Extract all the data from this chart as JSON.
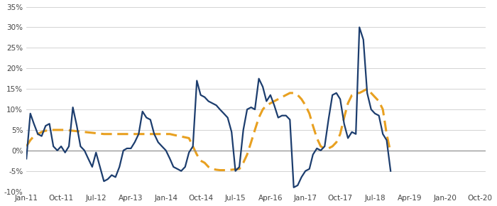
{
  "ylim": [
    -0.1,
    0.35
  ],
  "yticks": [
    -0.1,
    -0.05,
    0.0,
    0.05,
    0.1,
    0.15,
    0.2,
    0.25,
    0.3,
    0.35
  ],
  "ytick_labels": [
    "-10%",
    "-5%",
    "0%",
    "5%",
    "10%",
    "15%",
    "20%",
    "25%",
    "30%",
    "35%"
  ],
  "xtick_labels": [
    "Jan-11",
    "Oct-11",
    "Jul-12",
    "Apr-13",
    "Jan-14",
    "Oct-14",
    "Jul-15",
    "Apr-16",
    "Jan-17",
    "Oct-17",
    "Jul-18",
    "Apr-19",
    "Jan-20",
    "Oct-20"
  ],
  "solid_color": "#1c3d6e",
  "dashed_color": "#e8a020",
  "bg_color": "#ffffff",
  "grid_color": "#cccccc",
  "solid_lw": 1.6,
  "dashed_lw": 2.2,
  "solid_values": [
    -0.02,
    0.09,
    0.065,
    0.04,
    0.035,
    0.06,
    0.065,
    0.01,
    0.0,
    0.01,
    -0.005,
    0.01,
    0.105,
    0.06,
    0.01,
    0.0,
    -0.02,
    -0.04,
    -0.005,
    -0.04,
    -0.075,
    -0.07,
    -0.06,
    -0.065,
    -0.04,
    0.0,
    0.005,
    0.005,
    0.02,
    0.04,
    0.095,
    0.08,
    0.075,
    0.04,
    0.02,
    0.01,
    0.0,
    -0.02,
    -0.04,
    -0.045,
    -0.05,
    -0.04,
    -0.005,
    0.01,
    0.17,
    0.135,
    0.13,
    0.12,
    0.115,
    0.11,
    0.1,
    0.09,
    0.08,
    0.045,
    -0.05,
    -0.04,
    0.05,
    0.1,
    0.105,
    0.1,
    0.175,
    0.155,
    0.12,
    0.135,
    0.11,
    0.08,
    0.085,
    0.085,
    0.075,
    -0.09,
    -0.085,
    -0.065,
    -0.05,
    -0.045,
    -0.01,
    0.005,
    0.0,
    0.01,
    0.075,
    0.135,
    0.14,
    0.125,
    0.065,
    0.03,
    0.045,
    0.04,
    0.3,
    0.27,
    0.14,
    0.1,
    0.09,
    0.085,
    0.04,
    0.025,
    -0.05
  ],
  "dashed_values": [
    0.01,
    0.025,
    0.035,
    0.04,
    0.045,
    0.048,
    0.049,
    0.05,
    0.05,
    0.05,
    0.05,
    0.049,
    0.048,
    0.047,
    0.046,
    0.045,
    0.044,
    0.043,
    0.042,
    0.041,
    0.04,
    0.04,
    0.04,
    0.04,
    0.04,
    0.04,
    0.04,
    0.04,
    0.04,
    0.04,
    0.04,
    0.04,
    0.04,
    0.04,
    0.04,
    0.04,
    0.04,
    0.04,
    0.038,
    0.036,
    0.034,
    0.032,
    0.03,
    0.01,
    -0.01,
    -0.025,
    -0.03,
    -0.04,
    -0.045,
    -0.047,
    -0.048,
    -0.048,
    -0.048,
    -0.047,
    -0.046,
    -0.045,
    -0.03,
    -0.01,
    0.02,
    0.05,
    0.08,
    0.1,
    0.11,
    0.115,
    0.12,
    0.125,
    0.13,
    0.135,
    0.14,
    0.14,
    0.135,
    0.125,
    0.11,
    0.09,
    0.06,
    0.03,
    0.01,
    0.005,
    0.005,
    0.01,
    0.02,
    0.04,
    0.08,
    0.115,
    0.135,
    0.14,
    0.14,
    0.145,
    0.15,
    0.14,
    0.13,
    0.12,
    0.1,
    0.04,
    -0.005
  ]
}
